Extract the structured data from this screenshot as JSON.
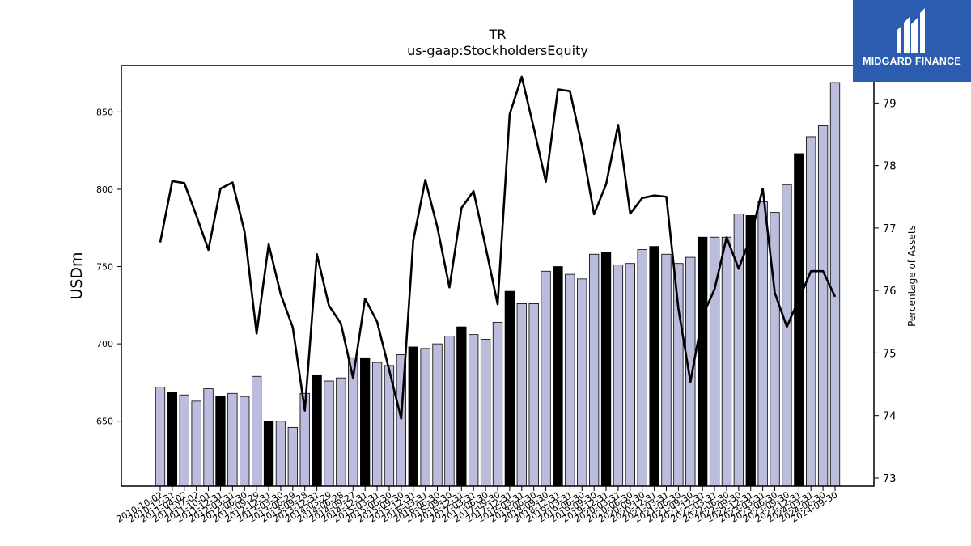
{
  "brand": {
    "name": "MIDGARD FINANCE",
    "logo_icon": "midgard-m-icon",
    "color": "#2b5cb0"
  },
  "chart_data": {
    "type": "bar",
    "title": "TR",
    "subtitle": "us-gaap:StockholdersEquity",
    "ylabel": "USDm",
    "y2label": "Percentage of Assets",
    "ylim": [
      608,
      880
    ],
    "y2lim": [
      72.87,
      79.6
    ],
    "yticks": [
      650,
      700,
      750,
      800,
      850
    ],
    "y2ticks": [
      73,
      74,
      75,
      76,
      77,
      78,
      79
    ],
    "grid": false,
    "colors": {
      "bar_default": "#bcbddc",
      "bar_highlight": "#000000",
      "line": "#000000"
    },
    "categories": [
      "2010-10-02",
      "2010-12-31",
      "2011-04-02",
      "2011-07-02",
      "2011-10-01",
      "2011-12-31",
      "2012-03-31",
      "2012-06-30",
      "2012-09-29",
      "2012-12-31",
      "2013-03-30",
      "2013-06-29",
      "2013-09-28",
      "2013-12-31",
      "2014-03-29",
      "2014-06-28",
      "2014-09-27",
      "2014-12-31",
      "2015-03-31",
      "2015-06-30",
      "2015-09-30",
      "2015-12-31",
      "2016-03-31",
      "2016-06-30",
      "2016-09-30",
      "2016-12-31",
      "2017-03-31",
      "2017-06-30",
      "2017-09-30",
      "2017-12-31",
      "2018-03-31",
      "2018-06-30",
      "2018-09-30",
      "2018-12-31",
      "2019-03-31",
      "2019-06-30",
      "2019-09-30",
      "2019-12-31",
      "2020-03-31",
      "2020-06-30",
      "2020-09-30",
      "2020-12-31",
      "2021-03-31",
      "2021-06-30",
      "2021-09-30",
      "2021-12-31",
      "2022-03-31",
      "2022-06-30",
      "2022-09-30",
      "2022-12-31",
      "2023-03-31",
      "2023-06-30",
      "2023-09-30",
      "2023-12-31",
      "2024-03-31",
      "2024-06-30",
      "2024-09-30"
    ],
    "series": [
      {
        "kind": "bar",
        "values": [
          672,
          669,
          667,
          663,
          671,
          666,
          668,
          666,
          679,
          650,
          650,
          646,
          668,
          680,
          676,
          678,
          691,
          691,
          688,
          686,
          693,
          698,
          697,
          700,
          705,
          711,
          706,
          703,
          714,
          734,
          726,
          726,
          747,
          750,
          745,
          742,
          758,
          759,
          751,
          752,
          761,
          763,
          758,
          752,
          756,
          769,
          769,
          769,
          784,
          783,
          792,
          785,
          803,
          823,
          834,
          841,
          869
        ]
      },
      {
        "kind": "line",
        "axis": "right",
        "values": [
          76.77,
          77.75,
          77.72,
          77.2,
          76.65,
          77.63,
          77.73,
          76.94,
          75.31,
          76.74,
          75.94,
          75.41,
          74.08,
          76.58,
          75.76,
          75.47,
          74.6,
          75.87,
          75.5,
          74.73,
          73.95,
          76.8,
          77.77,
          77.01,
          76.05,
          77.32,
          77.59,
          76.7,
          75.78,
          78.82,
          79.42,
          78.6,
          77.74,
          79.22,
          79.19,
          78.31,
          77.22,
          77.7,
          78.65,
          77.23,
          77.48,
          77.52,
          77.5,
          75.71,
          74.54,
          75.59,
          76.02,
          76.85,
          76.35,
          76.86,
          77.63,
          75.96,
          75.42,
          75.86,
          76.31,
          76.31,
          75.9
        ]
      }
    ],
    "highlight_indices": [
      1,
      5,
      9,
      13,
      17,
      21,
      25,
      29,
      33,
      37,
      41,
      45,
      49,
      53
    ]
  }
}
